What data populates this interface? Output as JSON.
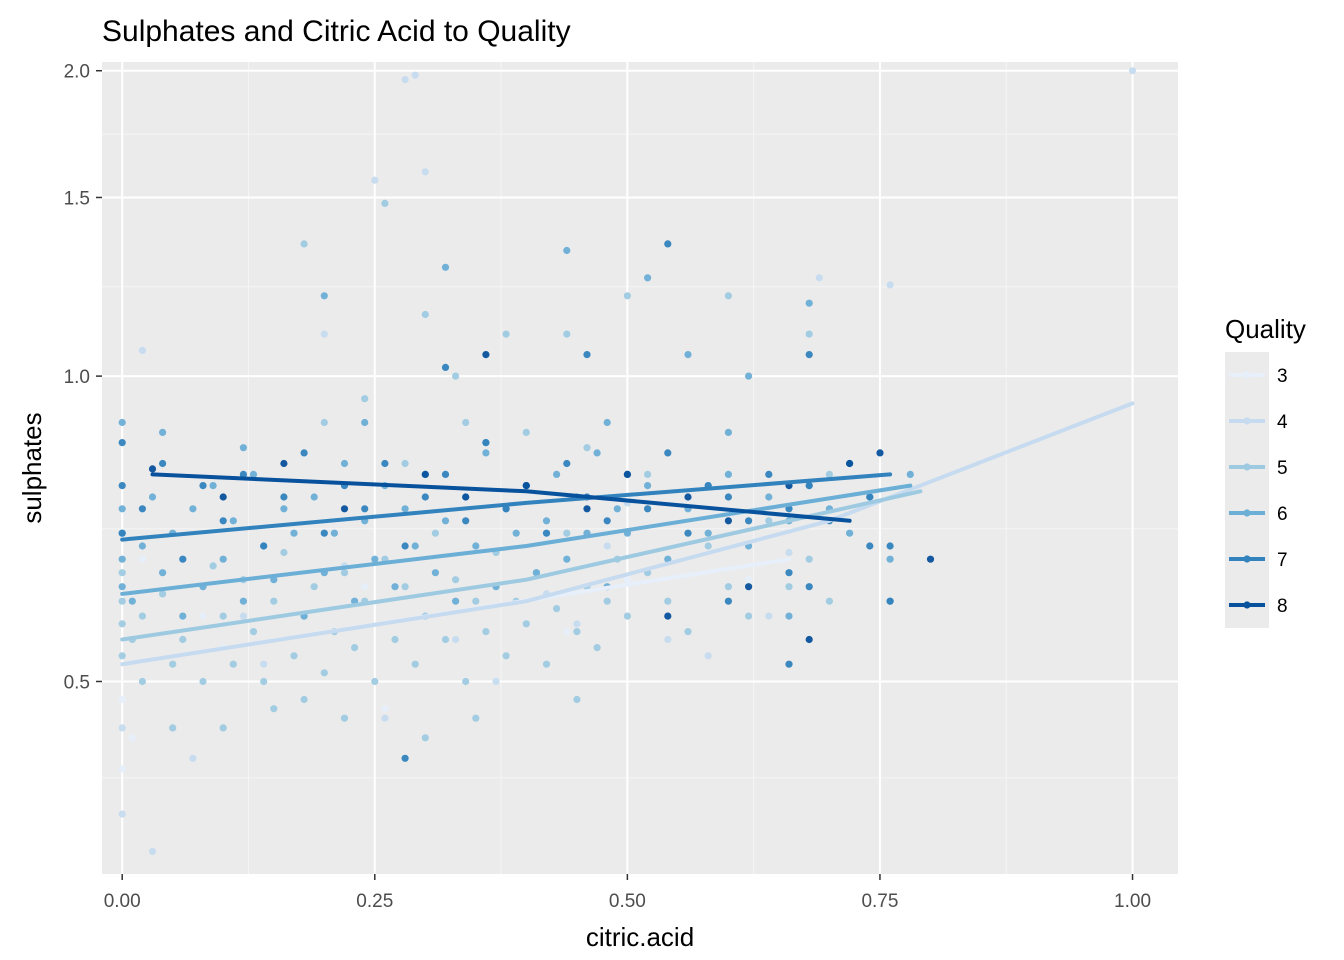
{
  "chart_data": {
    "type": "scatter",
    "title": "Sulphates and Citric Acid to Quality",
    "xlabel": "citric.acid",
    "ylabel": "sulphates",
    "xlim": [
      -0.02,
      1.045
    ],
    "ylim": [
      0.323,
      2.04
    ],
    "y_scale": "log10",
    "x_ticks": [
      0.0,
      0.25,
      0.5,
      0.75,
      1.0
    ],
    "x_tick_labels": [
      "0.00",
      "0.25",
      "0.50",
      "0.75",
      "1.00"
    ],
    "y_ticks": [
      0.5,
      1.0,
      1.5,
      2.0
    ],
    "y_tick_labels": [
      "0.5",
      "1.0",
      "1.5",
      "2.0"
    ],
    "grid": true,
    "legend": {
      "title": "Quality",
      "position": "right"
    },
    "series": [
      {
        "name": "3",
        "color": "#e6effa",
        "trend": [
          [
            0.0,
            0.52
          ],
          [
            0.66,
            0.66
          ]
        ],
        "points": [
          [
            0.0,
            0.48
          ],
          [
            0.02,
            0.66
          ],
          [
            0.08,
            0.58
          ],
          [
            0.1,
            0.54
          ],
          [
            0.24,
            0.62
          ],
          [
            0.26,
            0.47
          ],
          [
            0.37,
            0.5
          ],
          [
            0.44,
            0.56
          ],
          [
            0.5,
            0.63
          ],
          [
            0.62,
            0.63
          ],
          [
            0.01,
            0.44
          ],
          [
            0.0,
            0.41
          ]
        ]
      },
      {
        "name": "4",
        "color": "#c6dbef",
        "trend": [
          [
            0.0,
            0.52
          ],
          [
            0.4,
            0.6
          ],
          [
            0.7,
            0.72
          ],
          [
            1.0,
            0.94
          ]
        ],
        "points": [
          [
            0.0,
            0.37
          ],
          [
            0.02,
            1.06
          ],
          [
            0.03,
            0.34
          ],
          [
            0.07,
            0.42
          ],
          [
            0.12,
            0.58
          ],
          [
            0.2,
            1.1
          ],
          [
            0.22,
            0.65
          ],
          [
            0.28,
            1.96
          ],
          [
            0.29,
            1.98
          ],
          [
            0.25,
            1.56
          ],
          [
            0.3,
            1.59
          ],
          [
            0.33,
            0.55
          ],
          [
            0.37,
            0.5
          ],
          [
            0.42,
            0.61
          ],
          [
            0.45,
            0.57
          ],
          [
            0.5,
            0.75
          ],
          [
            0.58,
            0.53
          ],
          [
            0.64,
            0.58
          ],
          [
            0.66,
            0.67
          ],
          [
            0.69,
            1.25
          ],
          [
            0.76,
            1.23
          ],
          [
            1.0,
            2.0
          ],
          [
            0.0,
            0.45
          ],
          [
            0.14,
            0.52
          ],
          [
            0.26,
            0.46
          ],
          [
            0.48,
            0.68
          ],
          [
            0.54,
            0.55
          ]
        ]
      },
      {
        "name": "5",
        "color": "#9ecae1",
        "trend": [
          [
            0.0,
            0.55
          ],
          [
            0.4,
            0.63
          ],
          [
            0.79,
            0.77
          ]
        ],
        "points": [
          [
            0.0,
            0.57
          ],
          [
            0.0,
            0.6
          ],
          [
            0.0,
            0.64
          ],
          [
            0.0,
            0.53
          ],
          [
            0.01,
            0.55
          ],
          [
            0.02,
            0.5
          ],
          [
            0.02,
            0.58
          ],
          [
            0.04,
            0.61
          ],
          [
            0.05,
            0.52
          ],
          [
            0.06,
            0.55
          ],
          [
            0.08,
            0.5
          ],
          [
            0.09,
            0.65
          ],
          [
            0.1,
            0.58
          ],
          [
            0.11,
            0.52
          ],
          [
            0.12,
            0.63
          ],
          [
            0.13,
            0.56
          ],
          [
            0.14,
            0.5
          ],
          [
            0.15,
            0.6
          ],
          [
            0.16,
            0.67
          ],
          [
            0.17,
            0.53
          ],
          [
            0.18,
            0.58
          ],
          [
            0.19,
            0.62
          ],
          [
            0.2,
            0.51
          ],
          [
            0.21,
            0.56
          ],
          [
            0.22,
            0.64
          ],
          [
            0.23,
            0.54
          ],
          [
            0.24,
            0.6
          ],
          [
            0.25,
            0.5
          ],
          [
            0.26,
            0.66
          ],
          [
            0.27,
            0.55
          ],
          [
            0.28,
            0.62
          ],
          [
            0.29,
            0.52
          ],
          [
            0.3,
            0.58
          ],
          [
            0.31,
            0.7
          ],
          [
            0.32,
            0.55
          ],
          [
            0.33,
            0.63
          ],
          [
            0.34,
            0.5
          ],
          [
            0.35,
            0.6
          ],
          [
            0.36,
            0.56
          ],
          [
            0.37,
            0.67
          ],
          [
            0.38,
            0.53
          ],
          [
            0.39,
            0.6
          ],
          [
            0.4,
            0.57
          ],
          [
            0.41,
            0.64
          ],
          [
            0.42,
            0.52
          ],
          [
            0.43,
            0.59
          ],
          [
            0.44,
            0.7
          ],
          [
            0.45,
            0.56
          ],
          [
            0.46,
            0.62
          ],
          [
            0.47,
            0.54
          ],
          [
            0.48,
            0.6
          ],
          [
            0.49,
            0.66
          ],
          [
            0.5,
            0.58
          ],
          [
            0.52,
            0.64
          ],
          [
            0.54,
            0.6
          ],
          [
            0.56,
            0.56
          ],
          [
            0.58,
            0.68
          ],
          [
            0.6,
            0.62
          ],
          [
            0.62,
            0.58
          ],
          [
            0.64,
            0.72
          ],
          [
            0.66,
            0.62
          ],
          [
            0.68,
            0.66
          ],
          [
            0.7,
            0.6
          ],
          [
            0.1,
            0.45
          ],
          [
            0.15,
            0.47
          ],
          [
            0.22,
            0.46
          ],
          [
            0.3,
            0.44
          ],
          [
            0.35,
            0.46
          ],
          [
            0.45,
            0.48
          ],
          [
            0.05,
            0.45
          ],
          [
            0.18,
            0.48
          ],
          [
            0.18,
            1.35
          ],
          [
            0.26,
            1.48
          ],
          [
            0.3,
            1.15
          ],
          [
            0.33,
            1.0
          ],
          [
            0.38,
            1.1
          ],
          [
            0.44,
            1.1
          ],
          [
            0.5,
            1.2
          ],
          [
            0.6,
            1.2
          ],
          [
            0.68,
            1.1
          ],
          [
            0.2,
            0.9
          ],
          [
            0.24,
            0.95
          ],
          [
            0.28,
            0.82
          ],
          [
            0.34,
            0.9
          ],
          [
            0.4,
            0.88
          ],
          [
            0.46,
            0.85
          ],
          [
            0.52,
            0.8
          ],
          [
            0.58,
            0.78
          ],
          [
            0.7,
            0.8
          ]
        ]
      },
      {
        "name": "6",
        "color": "#6baed6",
        "trend": [
          [
            0.0,
            0.61
          ],
          [
            0.4,
            0.68
          ],
          [
            0.78,
            0.78
          ]
        ],
        "points": [
          [
            0.0,
            0.62
          ],
          [
            0.0,
            0.66
          ],
          [
            0.0,
            0.7
          ],
          [
            0.0,
            0.74
          ],
          [
            0.01,
            0.6
          ],
          [
            0.02,
            0.68
          ],
          [
            0.03,
            0.76
          ],
          [
            0.04,
            0.64
          ],
          [
            0.05,
            0.7
          ],
          [
            0.06,
            0.58
          ],
          [
            0.07,
            0.74
          ],
          [
            0.08,
            0.62
          ],
          [
            0.09,
            0.78
          ],
          [
            0.1,
            0.66
          ],
          [
            0.11,
            0.72
          ],
          [
            0.12,
            0.6
          ],
          [
            0.13,
            0.8
          ],
          [
            0.14,
            0.68
          ],
          [
            0.15,
            0.63
          ],
          [
            0.16,
            0.74
          ],
          [
            0.17,
            0.7
          ],
          [
            0.18,
            0.58
          ],
          [
            0.19,
            0.76
          ],
          [
            0.2,
            0.64
          ],
          [
            0.21,
            0.7
          ],
          [
            0.22,
            0.82
          ],
          [
            0.23,
            0.6
          ],
          [
            0.24,
            0.72
          ],
          [
            0.25,
            0.66
          ],
          [
            0.26,
            0.78
          ],
          [
            0.27,
            0.62
          ],
          [
            0.28,
            0.74
          ],
          [
            0.29,
            0.68
          ],
          [
            0.3,
            0.8
          ],
          [
            0.31,
            0.64
          ],
          [
            0.32,
            0.72
          ],
          [
            0.33,
            0.6
          ],
          [
            0.34,
            0.76
          ],
          [
            0.35,
            0.68
          ],
          [
            0.36,
            0.84
          ],
          [
            0.37,
            0.62
          ],
          [
            0.38,
            0.74
          ],
          [
            0.39,
            0.7
          ],
          [
            0.4,
            0.78
          ],
          [
            0.41,
            0.64
          ],
          [
            0.42,
            0.72
          ],
          [
            0.43,
            0.8
          ],
          [
            0.44,
            0.66
          ],
          [
            0.45,
            0.76
          ],
          [
            0.46,
            0.7
          ],
          [
            0.47,
            0.84
          ],
          [
            0.48,
            0.62
          ],
          [
            0.49,
            0.74
          ],
          [
            0.5,
            0.7
          ],
          [
            0.52,
            0.78
          ],
          [
            0.54,
            0.66
          ],
          [
            0.56,
            0.74
          ],
          [
            0.58,
            0.7
          ],
          [
            0.6,
            0.8
          ],
          [
            0.62,
            0.68
          ],
          [
            0.64,
            0.76
          ],
          [
            0.66,
            0.72
          ],
          [
            0.68,
            0.78
          ],
          [
            0.7,
            0.74
          ],
          [
            0.72,
            0.7
          ],
          [
            0.74,
            0.76
          ],
          [
            0.76,
            0.66
          ],
          [
            0.78,
            0.8
          ],
          [
            0.2,
            1.2
          ],
          [
            0.32,
            1.28
          ],
          [
            0.44,
            1.33
          ],
          [
            0.52,
            1.25
          ],
          [
            0.56,
            1.05
          ],
          [
            0.62,
            1.0
          ],
          [
            0.68,
            1.18
          ],
          [
            0.0,
            0.9
          ],
          [
            0.04,
            0.88
          ],
          [
            0.12,
            0.85
          ],
          [
            0.24,
            0.9
          ],
          [
            0.36,
            0.86
          ],
          [
            0.48,
            0.9
          ],
          [
            0.6,
            0.88
          ],
          [
            0.66,
            0.58
          ],
          [
            0.76,
            0.6
          ]
        ]
      },
      {
        "name": "7",
        "color": "#3182bd",
        "trend": [
          [
            0.0,
            0.69
          ],
          [
            0.4,
            0.75
          ],
          [
            0.76,
            0.8
          ]
        ],
        "points": [
          [
            0.0,
            0.86
          ],
          [
            0.0,
            0.78
          ],
          [
            0.0,
            0.7
          ],
          [
            0.02,
            0.74
          ],
          [
            0.04,
            0.82
          ],
          [
            0.06,
            0.66
          ],
          [
            0.08,
            0.78
          ],
          [
            0.1,
            0.72
          ],
          [
            0.12,
            0.8
          ],
          [
            0.14,
            0.68
          ],
          [
            0.16,
            0.76
          ],
          [
            0.18,
            0.84
          ],
          [
            0.2,
            0.7
          ],
          [
            0.22,
            0.78
          ],
          [
            0.24,
            0.74
          ],
          [
            0.26,
            0.82
          ],
          [
            0.28,
            0.68
          ],
          [
            0.3,
            0.76
          ],
          [
            0.32,
            0.8
          ],
          [
            0.34,
            0.72
          ],
          [
            0.36,
            0.86
          ],
          [
            0.38,
            0.74
          ],
          [
            0.4,
            0.78
          ],
          [
            0.42,
            0.7
          ],
          [
            0.44,
            0.82
          ],
          [
            0.46,
            0.76
          ],
          [
            0.48,
            0.72
          ],
          [
            0.5,
            0.8
          ],
          [
            0.52,
            0.74
          ],
          [
            0.54,
            0.84
          ],
          [
            0.56,
            0.7
          ],
          [
            0.58,
            0.78
          ],
          [
            0.6,
            0.76
          ],
          [
            0.62,
            0.72
          ],
          [
            0.64,
            0.8
          ],
          [
            0.66,
            0.74
          ],
          [
            0.68,
            0.78
          ],
          [
            0.7,
            0.72
          ],
          [
            0.72,
            0.82
          ],
          [
            0.74,
            0.76
          ],
          [
            0.54,
            1.35
          ],
          [
            0.46,
            1.05
          ],
          [
            0.32,
            1.02
          ],
          [
            0.66,
            0.52
          ],
          [
            0.28,
            0.42
          ],
          [
            0.74,
            0.68
          ],
          [
            0.76,
            0.68
          ],
          [
            0.76,
            0.6
          ],
          [
            0.68,
            1.05
          ],
          [
            0.6,
            0.6
          ],
          [
            0.66,
            0.64
          ],
          [
            0.68,
            0.62
          ]
        ]
      },
      {
        "name": "8",
        "color": "#08519c",
        "trend": [
          [
            0.03,
            0.8
          ],
          [
            0.4,
            0.77
          ],
          [
            0.72,
            0.72
          ]
        ],
        "points": [
          [
            0.03,
            0.81
          ],
          [
            0.1,
            0.76
          ],
          [
            0.16,
            0.82
          ],
          [
            0.22,
            0.74
          ],
          [
            0.3,
            0.8
          ],
          [
            0.34,
            0.76
          ],
          [
            0.4,
            0.78
          ],
          [
            0.46,
            0.74
          ],
          [
            0.5,
            0.8
          ],
          [
            0.56,
            0.76
          ],
          [
            0.6,
            0.72
          ],
          [
            0.66,
            0.78
          ],
          [
            0.72,
            0.82
          ],
          [
            0.75,
            0.84
          ],
          [
            0.68,
            0.55
          ],
          [
            0.54,
            0.58
          ],
          [
            0.62,
            0.62
          ],
          [
            0.36,
            1.05
          ],
          [
            0.8,
            0.66
          ]
        ]
      }
    ]
  }
}
